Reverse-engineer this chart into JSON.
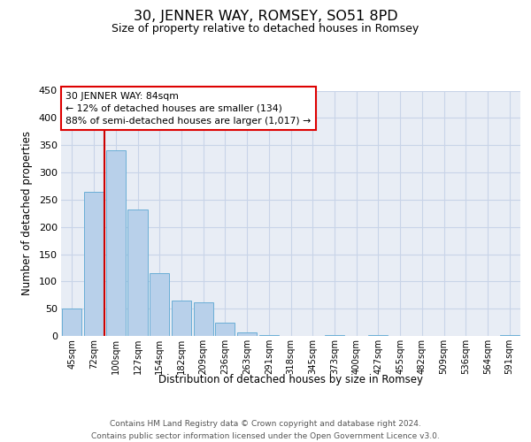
{
  "title": "30, JENNER WAY, ROMSEY, SO51 8PD",
  "subtitle": "Size of property relative to detached houses in Romsey",
  "xlabel": "Distribution of detached houses by size in Romsey",
  "ylabel": "Number of detached properties",
  "bar_labels": [
    "45sqm",
    "72sqm",
    "100sqm",
    "127sqm",
    "154sqm",
    "182sqm",
    "209sqm",
    "236sqm",
    "263sqm",
    "291sqm",
    "318sqm",
    "345sqm",
    "373sqm",
    "400sqm",
    "427sqm",
    "455sqm",
    "482sqm",
    "509sqm",
    "536sqm",
    "564sqm",
    "591sqm"
  ],
  "bar_values": [
    50,
    265,
    340,
    232,
    115,
    65,
    62,
    25,
    7,
    1,
    0,
    0,
    1,
    0,
    1,
    0,
    0,
    0,
    0,
    0,
    2
  ],
  "bar_color": "#b8d0ea",
  "bar_edge_color": "#6aaed6",
  "grid_color": "#c8d4e8",
  "bg_color": "#e8edf5",
  "vline_color": "#cc0000",
  "vline_x": 1.5,
  "ylim": [
    0,
    450
  ],
  "yticks": [
    0,
    50,
    100,
    150,
    200,
    250,
    300,
    350,
    400,
    450
  ],
  "annotation_title": "30 JENNER WAY: 84sqm",
  "annotation_line1": "← 12% of detached houses are smaller (134)",
  "annotation_line2": "88% of semi-detached houses are larger (1,017) →",
  "footer1": "Contains HM Land Registry data © Crown copyright and database right 2024.",
  "footer2": "Contains public sector information licensed under the Open Government Licence v3.0."
}
